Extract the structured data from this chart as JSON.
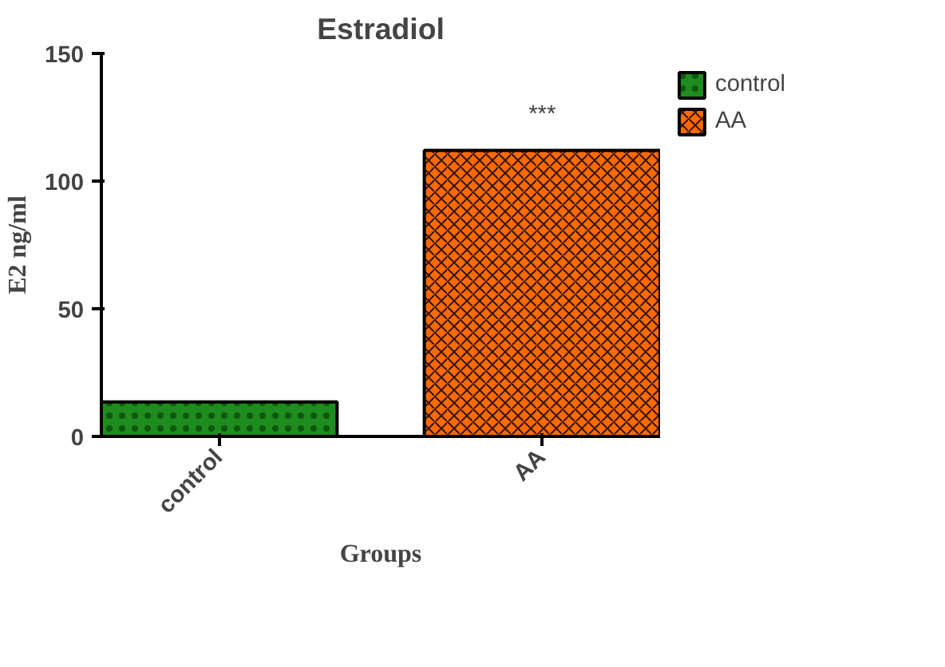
{
  "chart_data": {
    "type": "bar",
    "title": "Estradiol",
    "xlabel": "Groups",
    "ylabel": "E2 ng/ml",
    "categories": [
      "control",
      "AA"
    ],
    "series": [
      {
        "name": "control",
        "color": "#1e8c1e",
        "values": [
          13.5,
          null
        ]
      },
      {
        "name": "AA",
        "color": "#ff6a00",
        "values": [
          null,
          112
        ]
      }
    ],
    "ylim": [
      0,
      150
    ],
    "yticks": [
      0,
      50,
      100,
      150
    ],
    "legend": "right",
    "annotations": [
      "***"
    ]
  }
}
